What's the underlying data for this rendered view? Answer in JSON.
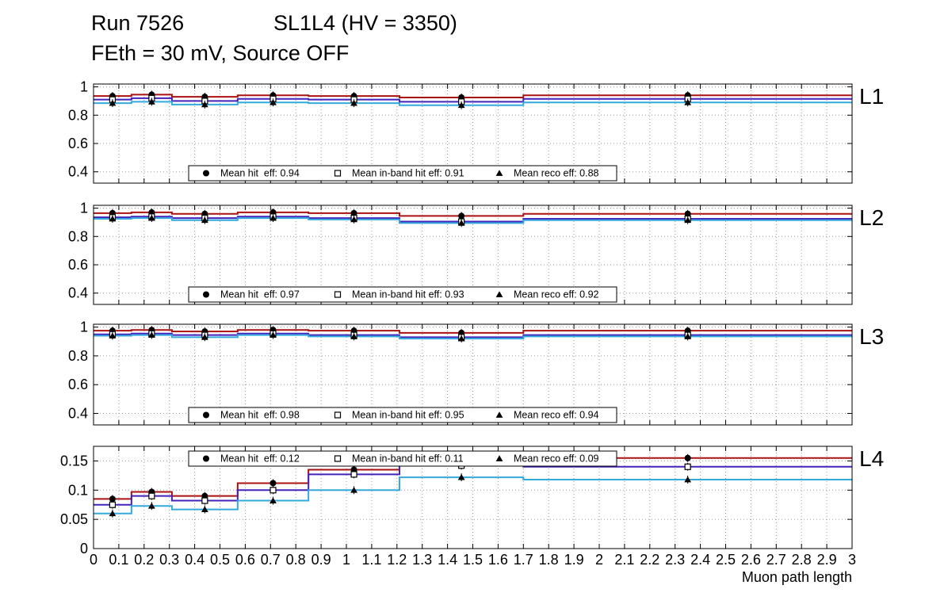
{
  "header": {
    "run": "Run 7526",
    "chamber": "SL1L4 (HV = 3350)",
    "subtitle": "FEth = 30 mV, Source OFF"
  },
  "axes": {
    "xlabel": "Muon path length",
    "xlim": [
      0,
      3
    ],
    "xtick_step": 0.1,
    "xtick_labels": [
      "0",
      "0.1",
      "0.2",
      "0.3",
      "0.4",
      "0.5",
      "0.6",
      "0.7",
      "0.8",
      "0.9",
      "1",
      "1.1",
      "1.2",
      "1.3",
      "1.4",
      "1.5",
      "1.6",
      "1.7",
      "1.8",
      "1.9",
      "2",
      "2.1",
      "2.2",
      "2.3",
      "2.4",
      "2.5",
      "2.6",
      "2.7",
      "2.8",
      "2.9",
      "3"
    ],
    "grid": true
  },
  "colors": {
    "hit_line": "#aa1111",
    "inband_line": "#4422bb",
    "reco_line": "#33aadd",
    "marker": "#000000",
    "grid": "#999999",
    "frame": "#000000",
    "background": "#ffffff"
  },
  "chart_data": {
    "type": "line",
    "style": "step-histogram",
    "x_bin_edges": [
      0,
      0.15,
      0.31,
      0.57,
      0.85,
      1.21,
      1.7,
      3
    ],
    "panels": [
      {
        "label": "L1",
        "ylim": [
          0.32,
          1.02
        ],
        "ytick_values": [
          0.4,
          0.6,
          0.8,
          1
        ],
        "ytick_labels": [
          "0.4",
          "0.6",
          "0.8",
          "1"
        ],
        "legend_position": "bottom",
        "legend": [
          {
            "marker": "filled-circle",
            "label": "Mean hit  eff: 0.94"
          },
          {
            "marker": "open-square",
            "label": "Mean in-band hit eff: 0.91"
          },
          {
            "marker": "filled-triangle",
            "label": "Mean reco eff: 0.88"
          }
        ],
        "series": [
          {
            "name": "hit_eff",
            "color": "hit_line",
            "marker": "filled-circle",
            "values": [
              0.935,
              0.945,
              0.93,
              0.94,
              0.935,
              0.925,
              0.94
            ]
          },
          {
            "name": "inband_hit_eff",
            "color": "inband_line",
            "marker": "open-square",
            "values": [
              0.91,
              0.92,
              0.9,
              0.915,
              0.91,
              0.895,
              0.915
            ]
          },
          {
            "name": "reco_eff",
            "color": "reco_line",
            "marker": "filled-triangle",
            "values": [
              0.885,
              0.895,
              0.875,
              0.89,
              0.885,
              0.87,
              0.89
            ]
          }
        ]
      },
      {
        "label": "L2",
        "ylim": [
          0.32,
          1.02
        ],
        "ytick_values": [
          0.4,
          0.6,
          0.8,
          1
        ],
        "ytick_labels": [
          "0.4",
          "0.6",
          "0.8",
          "1"
        ],
        "legend_position": "bottom",
        "legend": [
          {
            "marker": "filled-circle",
            "label": "Mean hit  eff: 0.97"
          },
          {
            "marker": "open-square",
            "label": "Mean in-band hit eff: 0.93"
          },
          {
            "marker": "filled-triangle",
            "label": "Mean reco eff: 0.92"
          }
        ],
        "series": [
          {
            "name": "hit_eff",
            "color": "hit_line",
            "marker": "filled-circle",
            "values": [
              0.965,
              0.97,
              0.96,
              0.97,
              0.965,
              0.945,
              0.96
            ]
          },
          {
            "name": "inband_hit_eff",
            "color": "inband_line",
            "marker": "open-square",
            "values": [
              0.935,
              0.94,
              0.93,
              0.94,
              0.93,
              0.905,
              0.925
            ]
          },
          {
            "name": "reco_eff",
            "color": "reco_line",
            "marker": "filled-triangle",
            "values": [
              0.925,
              0.93,
              0.915,
              0.93,
              0.92,
              0.895,
              0.915
            ]
          }
        ]
      },
      {
        "label": "L3",
        "ylim": [
          0.32,
          1.02
        ],
        "ytick_values": [
          0.4,
          0.6,
          0.8,
          1
        ],
        "ytick_labels": [
          "0.4",
          "0.6",
          "0.8",
          "1"
        ],
        "legend_position": "bottom",
        "legend": [
          {
            "marker": "filled-circle",
            "label": "Mean hit  eff: 0.98"
          },
          {
            "marker": "open-square",
            "label": "Mean in-band hit eff: 0.95"
          },
          {
            "marker": "filled-triangle",
            "label": "Mean reco eff: 0.94"
          }
        ],
        "series": [
          {
            "name": "hit_eff",
            "color": "hit_line",
            "marker": "filled-circle",
            "values": [
              0.975,
              0.98,
              0.97,
              0.98,
              0.975,
              0.96,
              0.975
            ]
          },
          {
            "name": "inband_hit_eff",
            "color": "inband_line",
            "marker": "open-square",
            "values": [
              0.95,
              0.955,
              0.945,
              0.955,
              0.945,
              0.93,
              0.945
            ]
          },
          {
            "name": "reco_eff",
            "color": "reco_line",
            "marker": "filled-triangle",
            "values": [
              0.94,
              0.945,
              0.93,
              0.945,
              0.935,
              0.92,
              0.935
            ]
          }
        ]
      },
      {
        "label": "L4",
        "ylim": [
          0,
          0.175
        ],
        "ytick_values": [
          0,
          0.05,
          0.1,
          0.15
        ],
        "ytick_labels": [
          "0",
          "0.05",
          "0.1",
          "0.15"
        ],
        "legend_position": "top",
        "legend": [
          {
            "marker": "filled-circle",
            "label": "Mean hit  eff: 0.12"
          },
          {
            "marker": "open-square",
            "label": "Mean in-band hit eff: 0.11"
          },
          {
            "marker": "filled-triangle",
            "label": "Mean reco eff: 0.09"
          }
        ],
        "series": [
          {
            "name": "hit_eff",
            "color": "hit_line",
            "marker": "filled-circle",
            "values": [
              0.085,
              0.097,
              0.09,
              0.112,
              0.135,
              0.15,
              0.155
            ]
          },
          {
            "name": "inband_hit_eff",
            "color": "inband_line",
            "marker": "open-square",
            "values": [
              0.075,
              0.09,
              0.082,
              0.1,
              0.127,
              0.142,
              0.14
            ]
          },
          {
            "name": "reco_eff",
            "color": "reco_line",
            "marker": "filled-triangle",
            "values": [
              0.06,
              0.073,
              0.067,
              0.082,
              0.1,
              0.122,
              0.118
            ]
          }
        ]
      }
    ]
  }
}
